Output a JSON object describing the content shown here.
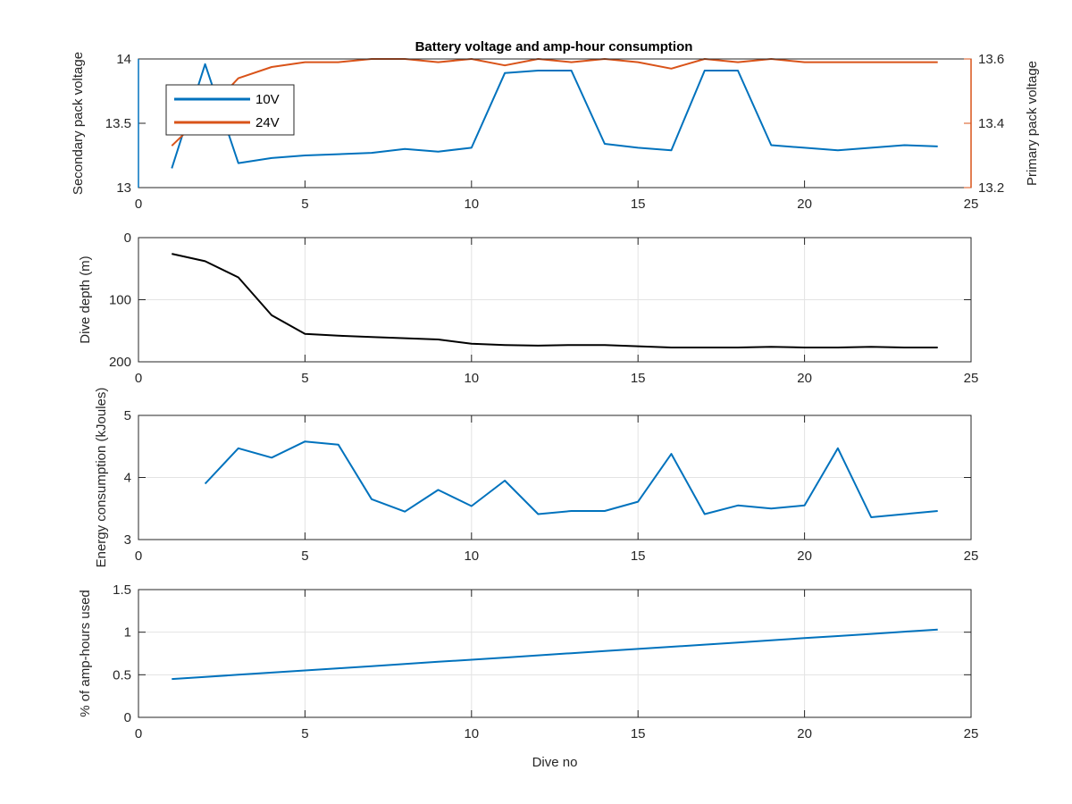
{
  "title": "Battery voltage and amp-hour consumption",
  "chart_data": [
    {
      "type": "line",
      "xlabel": "",
      "xlim": [
        0,
        25
      ],
      "xticks": [
        "0",
        "5",
        "10",
        "15",
        "20",
        "25"
      ],
      "x": [
        1,
        2,
        3,
        4,
        5,
        6,
        7,
        8,
        9,
        10,
        11,
        12,
        13,
        14,
        15,
        16,
        17,
        18,
        19,
        20,
        21,
        22,
        23,
        24
      ],
      "left_axis": {
        "label": "Secondary pack voltage",
        "ylim": [
          13,
          14
        ],
        "ticks": [
          "13",
          "13.5",
          "14"
        ],
        "color": "#0072bd"
      },
      "right_axis": {
        "label": "Primary pack voltage",
        "ylim": [
          13.2,
          13.6
        ],
        "ticks": [
          "13.2",
          "13.4",
          "13.6"
        ],
        "color": "#d95319"
      },
      "grid": false,
      "legend_position": "top-left",
      "series": [
        {
          "name": "10V",
          "axis": "left",
          "color": "#0072bd",
          "values": [
            13.15,
            13.96,
            13.19,
            13.23,
            13.25,
            13.26,
            13.27,
            13.3,
            13.28,
            13.31,
            13.89,
            13.91,
            13.91,
            13.34,
            13.31,
            13.29,
            13.91,
            13.91,
            13.33,
            13.31,
            13.29,
            13.31,
            13.33,
            13.32
          ]
        },
        {
          "name": "24V",
          "axis": "right",
          "color": "#d95319",
          "values": [
            13.33,
            13.43,
            13.54,
            13.575,
            13.59,
            13.59,
            13.6,
            13.6,
            13.59,
            13.6,
            13.58,
            13.6,
            13.59,
            13.6,
            13.59,
            13.57,
            13.6,
            13.59,
            13.6,
            13.59,
            13.59,
            13.59,
            13.59,
            13.59
          ]
        }
      ]
    },
    {
      "type": "line",
      "ylabel": "Dive depth (m)",
      "xlim": [
        0,
        25
      ],
      "xticks": [
        "0",
        "5",
        "10",
        "15",
        "20",
        "25"
      ],
      "ylim": [
        0,
        200
      ],
      "yreversed": true,
      "yticks": [
        "0",
        "100",
        "200"
      ],
      "grid": true,
      "x": [
        1,
        2,
        3,
        4,
        5,
        6,
        7,
        8,
        9,
        10,
        11,
        12,
        13,
        14,
        15,
        16,
        17,
        18,
        19,
        20,
        21,
        22,
        23,
        24
      ],
      "series": [
        {
          "color": "#000000",
          "values": [
            26,
            38,
            64,
            125,
            155,
            158,
            160,
            162,
            164,
            171,
            173,
            174,
            173,
            173,
            175,
            177,
            177,
            177,
            176,
            177,
            177,
            176,
            177,
            177
          ]
        }
      ]
    },
    {
      "type": "line",
      "ylabel": "Energy consumption (kJoules)",
      "xlim": [
        0,
        25
      ],
      "xticks": [
        "0",
        "5",
        "10",
        "15",
        "20",
        "25"
      ],
      "ylim": [
        3,
        5
      ],
      "yticks": [
        "3",
        "4",
        "5"
      ],
      "grid": true,
      "x": [
        2,
        3,
        4,
        5,
        6,
        7,
        8,
        9,
        10,
        11,
        12,
        13,
        14,
        15,
        16,
        17,
        18,
        19,
        20,
        21,
        22,
        23,
        24
      ],
      "series": [
        {
          "color": "#0072bd",
          "values": [
            3.9,
            4.47,
            4.32,
            4.58,
            4.53,
            3.65,
            3.45,
            3.8,
            3.54,
            3.95,
            3.41,
            3.46,
            3.46,
            3.61,
            4.38,
            3.41,
            3.55,
            3.5,
            3.55,
            4.47,
            3.36,
            3.41,
            3.46
          ]
        }
      ]
    },
    {
      "type": "line",
      "xlabel": "Dive no",
      "ylabel": "% of amp-hours used",
      "xlim": [
        0,
        25
      ],
      "xticks": [
        "0",
        "5",
        "10",
        "15",
        "20",
        "25"
      ],
      "ylim": [
        0,
        1.5
      ],
      "yticks": [
        "0",
        "0.5",
        "1",
        "1.5"
      ],
      "grid": true,
      "x": [
        1,
        2,
        3,
        4,
        5,
        6,
        7,
        8,
        9,
        10,
        11,
        12,
        13,
        14,
        15,
        16,
        17,
        18,
        19,
        20,
        21,
        22,
        23,
        24
      ],
      "series": [
        {
          "color": "#0072bd",
          "values": [
            0.45,
            0.475,
            0.5,
            0.526,
            0.551,
            0.576,
            0.601,
            0.627,
            0.652,
            0.677,
            0.702,
            0.728,
            0.753,
            0.778,
            0.803,
            0.829,
            0.854,
            0.879,
            0.905,
            0.93,
            0.955,
            0.98,
            1.006,
            1.031
          ]
        }
      ]
    }
  ]
}
